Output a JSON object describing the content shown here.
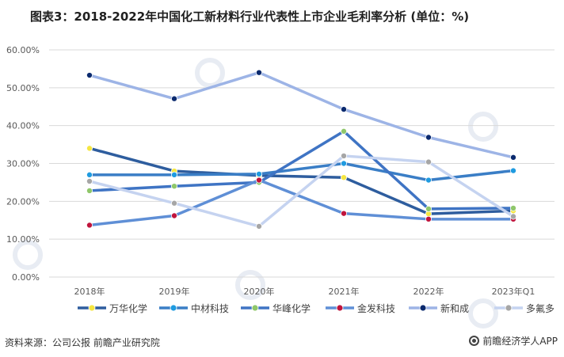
{
  "title": "图表3：2018-2022年中国化工新材料行业代表性上市企业毛利率分析 (单位：%)",
  "footer": {
    "source": "资料来源：公司公报 前瞻产业研究院",
    "brand": "前瞻经济学人APP"
  },
  "chart_data": {
    "type": "line",
    "categories": [
      "2018年",
      "2019年",
      "2020年",
      "2021年",
      "2022年",
      "2023年Q1"
    ],
    "ylim": [
      0,
      60
    ],
    "yticks": [
      "0.00%",
      "10.00%",
      "20.00%",
      "30.00%",
      "40.00%",
      "50.00%",
      "60.00%"
    ],
    "legend_position": "bottom",
    "series": [
      {
        "name": "万华化学",
        "values": [
          34.0,
          28.0,
          26.8,
          26.3,
          16.7,
          17.5
        ],
        "line_color": "#2e5d9e",
        "marker_color": "#f5e642"
      },
      {
        "name": "中材科技",
        "values": [
          27.0,
          27.0,
          27.2,
          30.0,
          25.6,
          28.1
        ],
        "line_color": "#3a7ec6",
        "marker_color": "#1f9be0"
      },
      {
        "name": "华峰化学",
        "values": [
          22.8,
          24.0,
          25.0,
          38.5,
          18.0,
          18.2
        ],
        "line_color": "#3f74c4",
        "marker_color": "#8fc76a"
      },
      {
        "name": "金发科技",
        "values": [
          13.7,
          16.2,
          25.6,
          16.8,
          15.3,
          15.3
        ],
        "line_color": "#5f8fd6",
        "marker_color": "#c0143c"
      },
      {
        "name": "新和成",
        "values": [
          53.3,
          47.1,
          54.0,
          44.3,
          36.9,
          31.6
        ],
        "line_color": "#9db4e6",
        "marker_color": "#0b2a6e"
      },
      {
        "name": "多氟多",
        "values": [
          25.3,
          19.5,
          13.4,
          32.0,
          30.4,
          16.0
        ],
        "line_color": "#c5d3f0",
        "marker_color": "#a6a6a6"
      }
    ],
    "colors": {
      "grid": "#d9d9d9",
      "axis_text": "#595959",
      "watermark": "#e8ecf3"
    }
  }
}
